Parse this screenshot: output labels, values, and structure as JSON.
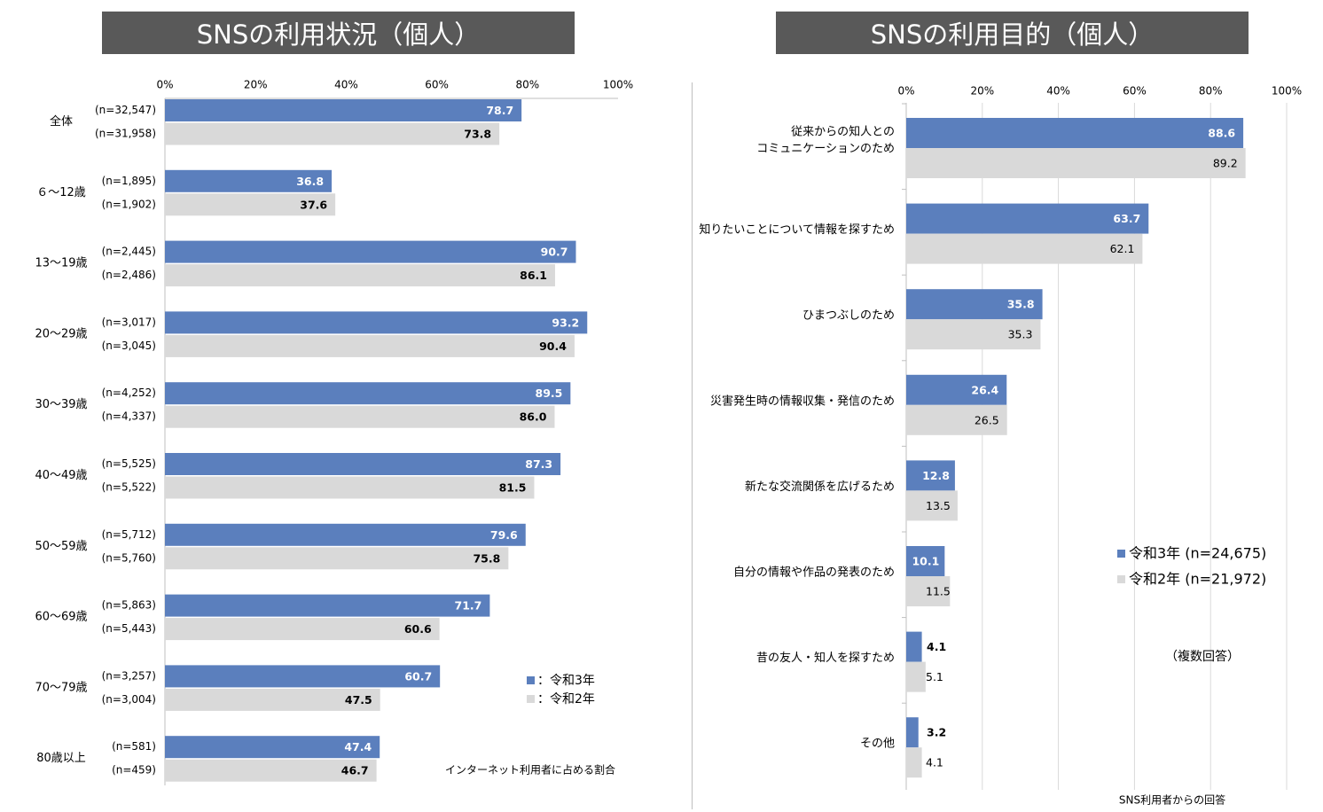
{
  "left_title": "SNSの利用状況（個人）",
  "right_title": "SNSの利用目的（個人）",
  "colors": {
    "series1": "#5b7fbd",
    "series2": "#d9d9d9",
    "title_bg": "#595959"
  },
  "chart_data": [
    {
      "type": "bar",
      "orientation": "horizontal",
      "title": "SNSの利用状況（個人）",
      "xlim": [
        0,
        100
      ],
      "x_ticks": [
        "0%",
        "20%",
        "40%",
        "60%",
        "80%",
        "100%"
      ],
      "categories": [
        "全体",
        "６～12歳",
        "13～19歳",
        "20～29歳",
        "30～39歳",
        "40～49歳",
        "50～59歳",
        "60～69歳",
        "70～79歳",
        "80歳以上"
      ],
      "series": [
        {
          "name": "令和3年",
          "legend": "：令和3年",
          "values": [
            78.7,
            36.8,
            90.7,
            93.2,
            89.5,
            87.3,
            79.6,
            71.7,
            60.7,
            47.4
          ],
          "labels": [
            "78.7",
            "36.8",
            "90.7",
            "93.2",
            "89.5",
            "87.3",
            "79.6",
            "71.7",
            "60.7",
            "47.4"
          ],
          "n": [
            "(n=32,547)",
            "(n=1,895)",
            "(n=2,445)",
            "(n=3,017)",
            "(n=4,252)",
            "(n=5,525)",
            "(n=5,712)",
            "(n=5,863)",
            "(n=3,257)",
            "(n=581)"
          ]
        },
        {
          "name": "令和2年",
          "legend": "：令和2年",
          "values": [
            73.8,
            37.6,
            86.1,
            90.4,
            86.0,
            81.5,
            75.8,
            60.6,
            47.5,
            46.7
          ],
          "labels": [
            "73.8",
            "37.6",
            "86.1",
            "90.4",
            "86.0",
            "81.5",
            "75.8",
            "60.6",
            "47.5",
            "46.7"
          ],
          "n": [
            "(n=31,958)",
            "(n=1,902)",
            "(n=2,486)",
            "(n=3,045)",
            "(n=4,337)",
            "(n=5,522)",
            "(n=5,760)",
            "(n=5,443)",
            "(n=3,004)",
            "(n=459)"
          ]
        }
      ],
      "note": "インターネット利用者に占める割合",
      "legend_position": "right"
    },
    {
      "type": "bar",
      "orientation": "horizontal",
      "title": "SNSの利用目的（個人）",
      "xlim": [
        0,
        100
      ],
      "x_ticks": [
        "0%",
        "20%",
        "40%",
        "60%",
        "80%",
        "100%"
      ],
      "categories": [
        [
          "従来からの知人との",
          "コミュニケーションのため"
        ],
        [
          "知りたいことについて情報を探すため"
        ],
        [
          "ひまつぶしのため"
        ],
        [
          "災害発生時の情報収集・発信のため"
        ],
        [
          "新たな交流関係を広げるため"
        ],
        [
          "自分の情報や作品の発表のため"
        ],
        [
          "昔の友人・知人を探すため"
        ],
        [
          "その他"
        ]
      ],
      "series": [
        {
          "name": "令和3年",
          "legend": "令和3年 (n=24,675)",
          "values": [
            88.6,
            63.7,
            35.8,
            26.4,
            12.8,
            10.1,
            4.1,
            3.2
          ],
          "labels": [
            "88.6",
            "63.7",
            "35.8",
            "26.4",
            "12.8",
            "10.1",
            "4.1",
            "3.2"
          ]
        },
        {
          "name": "令和2年",
          "legend": "令和2年 (n=21,972)",
          "values": [
            89.2,
            62.1,
            35.3,
            26.5,
            13.5,
            11.5,
            5.1,
            4.1
          ],
          "labels": [
            "89.2",
            "62.1",
            "35.3",
            "26.5",
            "13.5",
            "11.5",
            "5.1",
            "4.1"
          ]
        }
      ],
      "note_multi": "（複数回答）",
      "note_bottom": "SNS利用者からの回答",
      "legend_position": "right"
    }
  ]
}
